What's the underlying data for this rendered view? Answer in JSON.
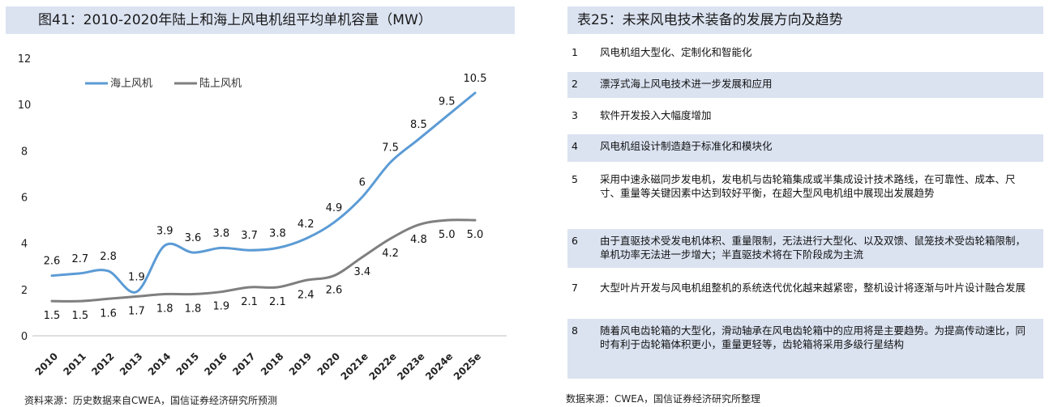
{
  "left_panel": {
    "title": "图41：2010-2020年陆上和海上风电机组平均单机容量（MW）",
    "source": "资料来源：历史数据来自CWEA，国信证券经济研究所预测"
  },
  "right_panel": {
    "title": "表25：未来风电技术装备的发展方向及趋势",
    "source": "数据来源：CWEA，国信证券经济研究所整理",
    "rows": [
      {
        "num": "1",
        "text": "风电机组大型化、定制化和智能化"
      },
      {
        "num": "2",
        "text": "漂浮式海上风电技术进一步发展和应用"
      },
      {
        "num": "3",
        "text": "软件开发投入大幅度增加"
      },
      {
        "num": "4",
        "text": "风电机组设计制造趋于标准化和模块化"
      },
      {
        "num": "5",
        "text": "采用中速永磁同步发电机，发电机与齿轮箱集成或半集成设计技术路线，在可靠性、成本、尺寸、重量等关键因素中达到较好平衡，在超大型风电机组中展现出发展趋势"
      },
      {
        "num": "6",
        "text": "由于直驱技术受发电机体积、重量限制，无法进行大型化、以及双馈、鼠笼技术受齿轮箱限制，单机功率无法进一步增大；半直驱技术将在下阶段成为主流"
      },
      {
        "num": "7",
        "text": "大型叶片开发与风电机组整机的系统迭代优化越来越紧密，整机设计将逐渐与叶片设计融合发展"
      },
      {
        "num": "8",
        "text": "随着风电齿轮箱的大型化，滑动轴承在风电齿轮箱中的应用将是主要趋势。为提高传动速比，同时有利于齿轮箱体积更小，重量更轻等，齿轮箱将采用多级行星结构"
      }
    ]
  },
  "chart_data": {
    "type": "line",
    "title": "图41：2010-2020年陆上和海上风电机组平均单机容量（MW）",
    "xlabel": "",
    "ylabel": "",
    "ylim": [
      0,
      12
    ],
    "yticks": [
      "0",
      "2",
      "4",
      "6",
      "8",
      "10",
      "12"
    ],
    "grid": false,
    "legend_position": "top-left",
    "categories": [
      "2010",
      "2011",
      "2012",
      "2013",
      "2014",
      "2015",
      "2016",
      "2017",
      "2018",
      "2019",
      "2020",
      "2021e",
      "2022e",
      "2023e",
      "2024e",
      "2025e"
    ],
    "series": [
      {
        "name": "海上风机",
        "color": "#5b9bd5",
        "values": [
          2.6,
          2.7,
          2.8,
          1.9,
          3.9,
          3.6,
          3.8,
          3.7,
          3.8,
          4.2,
          4.9,
          6,
          7.5,
          8.5,
          9.5,
          10.5
        ],
        "labels": [
          "2.6",
          "2.7",
          "2.8",
          "1.9",
          "3.9",
          "3.6",
          "3.8",
          "3.7",
          "3.8",
          "4.2",
          "4.9",
          "6",
          "7.5",
          "8.5",
          "9.5",
          "10.5"
        ]
      },
      {
        "name": "陆上风机",
        "color": "#7f7f7f",
        "values": [
          1.5,
          1.5,
          1.6,
          1.7,
          1.8,
          1.8,
          1.9,
          2.1,
          2.1,
          2.4,
          2.6,
          3.4,
          4.2,
          4.8,
          5.0,
          5.0
        ],
        "labels": [
          "1.5",
          "1.5",
          "1.6",
          "1.7",
          "1.8",
          "1.8",
          "1.9",
          "2.1",
          "2.1",
          "2.4",
          "2.6",
          "3.4",
          "4.2",
          "4.8",
          "5.0",
          "5.0"
        ]
      }
    ]
  }
}
